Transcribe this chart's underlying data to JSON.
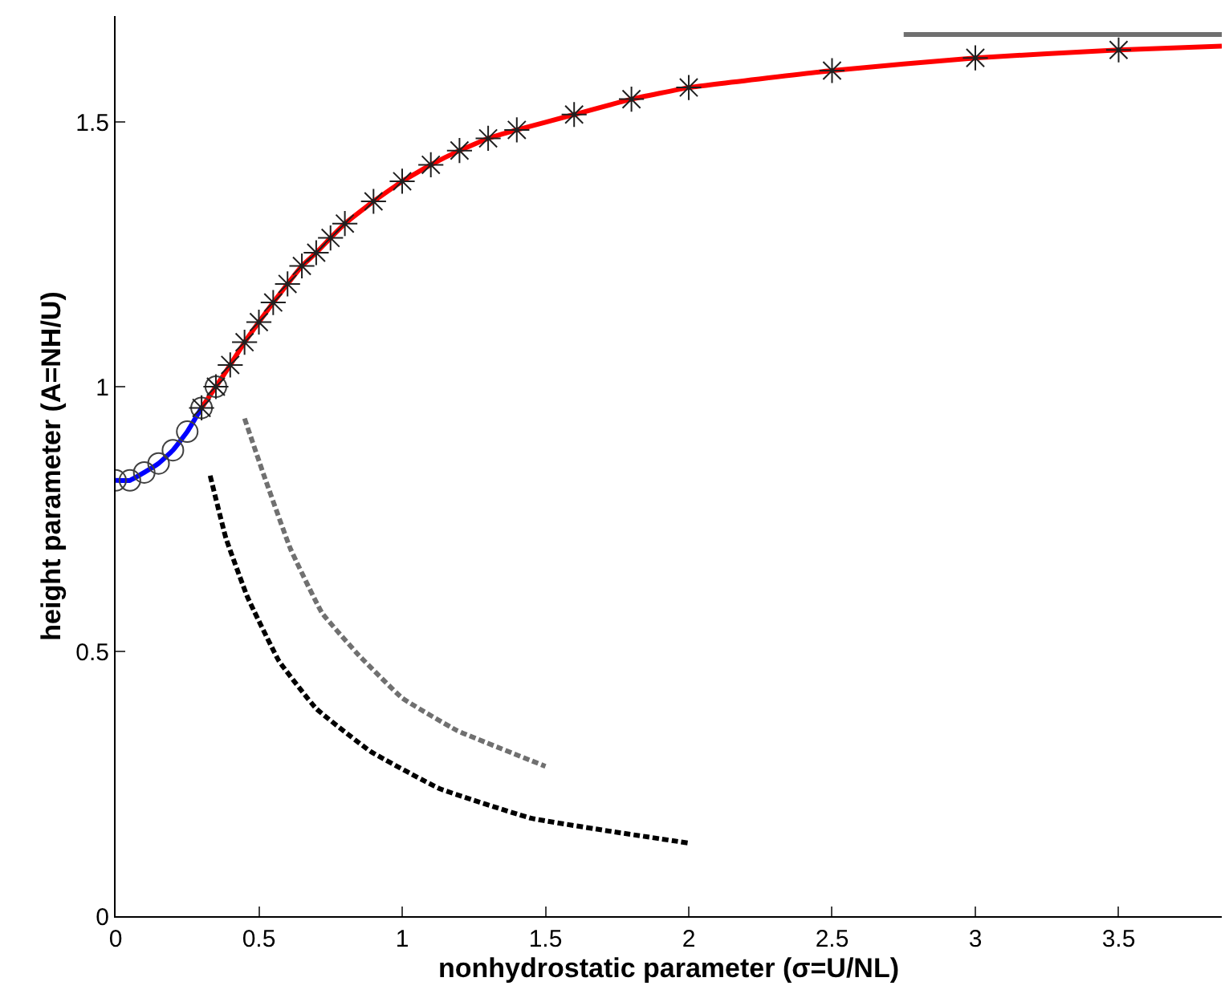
{
  "chart_data": {
    "type": "line",
    "xlabel": "nonhydrostatic parameter (σ=U/NL)",
    "ylabel": "height parameter (A=NH/U)",
    "xlim": [
      0,
      3.86
    ],
    "ylim": [
      0,
      1.7
    ],
    "xticks": [
      0,
      0.5,
      1,
      1.5,
      2,
      2.5,
      3,
      3.5
    ],
    "yticks": [
      0,
      0.5,
      1,
      1.5
    ],
    "series": [
      {
        "type": "line",
        "color": "#0000ff",
        "line_style": "solid",
        "x": [
          0,
          0.05,
          0.1,
          0.15,
          0.2,
          0.25,
          0.3
        ],
        "values": [
          0.823,
          0.823,
          0.838,
          0.855,
          0.88,
          0.915,
          0.96
        ]
      },
      {
        "type": "line",
        "color": "#ff0000",
        "line_style": "solid",
        "x": [
          0.3,
          0.35,
          0.4,
          0.45,
          0.5,
          0.55,
          0.6,
          0.65,
          0.7,
          0.75,
          0.8,
          0.9,
          1.0,
          1.1,
          1.2,
          1.3,
          1.4,
          1.6,
          1.8,
          2.0,
          2.5,
          3.0,
          3.5,
          3.86
        ],
        "values": [
          0.96,
          1.0,
          1.041,
          1.084,
          1.122,
          1.159,
          1.194,
          1.228,
          1.253,
          1.281,
          1.308,
          1.35,
          1.388,
          1.419,
          1.446,
          1.469,
          1.485,
          1.514,
          1.543,
          1.565,
          1.597,
          1.621,
          1.636,
          1.643
        ]
      },
      {
        "type": "scatter",
        "color": "#404040",
        "marker": "circle",
        "x": [
          0,
          0.05,
          0.1,
          0.15,
          0.2,
          0.25,
          0.3,
          0.35
        ],
        "values": [
          0.823,
          0.823,
          0.838,
          0.855,
          0.88,
          0.915,
          0.96,
          1.0
        ]
      },
      {
        "type": "scatter",
        "color": "#202020",
        "marker": "cross",
        "x": [
          0.3,
          0.35,
          0.4,
          0.45,
          0.5,
          0.55,
          0.6,
          0.65,
          0.7,
          0.75,
          0.8,
          0.9,
          1.0,
          1.1,
          1.2,
          1.3,
          1.4,
          1.6,
          1.8,
          2.0,
          2.5,
          3.0,
          3.5
        ],
        "values": [
          0.96,
          1.0,
          1.041,
          1.084,
          1.122,
          1.159,
          1.194,
          1.228,
          1.253,
          1.281,
          1.308,
          1.35,
          1.388,
          1.419,
          1.446,
          1.469,
          1.485,
          1.514,
          1.543,
          1.565,
          1.597,
          1.621,
          1.636
        ]
      },
      {
        "type": "line",
        "color": "#000000",
        "line_style": "dashed",
        "x": [
          0.33,
          0.385,
          0.46,
          0.57,
          0.7,
          0.89,
          1.13,
          1.45,
          1.73,
          2.0
        ],
        "values": [
          0.832,
          0.714,
          0.603,
          0.482,
          0.392,
          0.311,
          0.241,
          0.185,
          0.16,
          0.138
        ]
      },
      {
        "type": "line",
        "color": "#707070",
        "line_style": "dashed",
        "x": [
          0.45,
          0.516,
          0.61,
          0.72,
          0.85,
          1.0,
          1.19,
          1.5
        ],
        "values": [
          0.94,
          0.835,
          0.694,
          0.573,
          0.492,
          0.412,
          0.351,
          0.283
        ]
      },
      {
        "type": "line",
        "color": "#707070",
        "line_style": "solid",
        "x": [
          2.75,
          3.86
        ],
        "values": [
          1.665,
          1.665
        ]
      }
    ]
  }
}
